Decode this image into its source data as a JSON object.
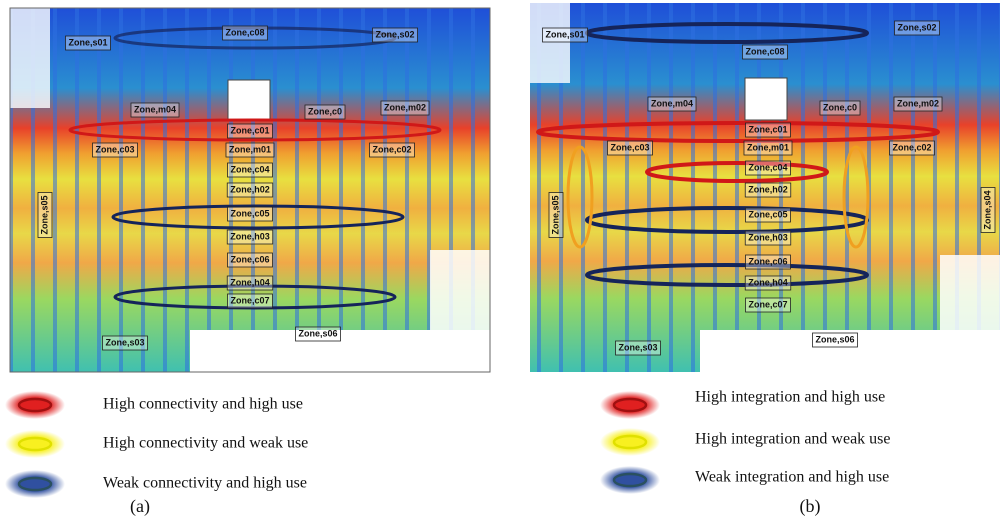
{
  "panels": [
    {
      "caption": "(a)",
      "zones": [
        "Zone,s01",
        "Zone,c08",
        "Zone,s02",
        "Zone,m04",
        "Zone,c0",
        "Zone,m02",
        "Zone,c01",
        "Zone,c03",
        "Zone,m01",
        "Zone,c02",
        "Zone,c04",
        "Zone,h02",
        "Zone,s05",
        "Zone,c05",
        "Zone,h03",
        "Zone,c06",
        "Zone,h04",
        "Zone,c07",
        "Zone,s06",
        "Zone,s03"
      ],
      "legend": [
        "High connectivity and high use",
        "High connectivity and weak use",
        "Weak connectivity and high use"
      ]
    },
    {
      "caption": "(b)",
      "zones": [
        "Zone,s01",
        "Zone,c08",
        "Zone,s02",
        "Zone,m04",
        "Zone,c0",
        "Zone,m02",
        "Zone,c01",
        "Zone,c03",
        "Zone,m01",
        "Zone,c02",
        "Zone,c04",
        "Zone,h02",
        "Zone,s05",
        "Zone,s04",
        "Zone,c05",
        "Zone,h03",
        "Zone,c06",
        "Zone,h04",
        "Zone,c07",
        "Zone,s06",
        "Zone,s03"
      ],
      "legend": [
        "High integration and high use",
        "High integration and weak use",
        "Weak integration and high use"
      ]
    }
  ]
}
